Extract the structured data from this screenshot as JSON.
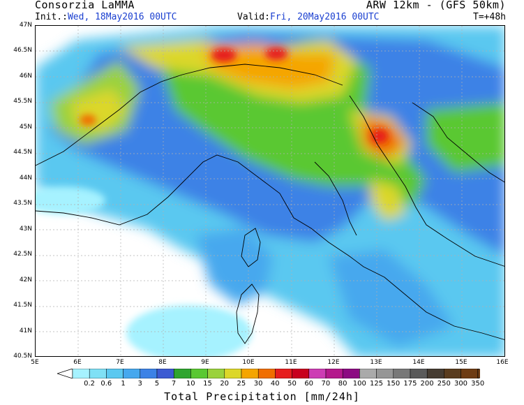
{
  "header": {
    "org": "Consorzia LaMMA",
    "model": "ARW 12km - (GFS 50km)",
    "init_label": "Init.:",
    "init_value": "Wed, 18May2016 00UTC",
    "valid_label": "Valid:",
    "valid_value": "Fri, 20May2016 00UTC",
    "step": "T=+48h"
  },
  "map": {
    "lat_labels": [
      "47N",
      "46.5N",
      "46N",
      "45.5N",
      "45N",
      "44.5N",
      "44N",
      "43.5N",
      "43N",
      "42.5N",
      "42N",
      "41.5N",
      "41N",
      "40.5N"
    ],
    "lon_labels": [
      "5E",
      "6E",
      "7E",
      "8E",
      "9E",
      "10E",
      "11E",
      "12E",
      "13E",
      "14E",
      "15E",
      "16E"
    ],
    "lat_range": [
      40.5,
      47
    ],
    "lon_range": [
      5,
      16
    ]
  },
  "legend": {
    "title": "Total Precipitation [mm/24h]",
    "values": [
      "0.2",
      "0.6",
      "1",
      "3",
      "5",
      "7",
      "10",
      "15",
      "20",
      "25",
      "30",
      "40",
      "50",
      "60",
      "70",
      "80",
      "100",
      "125",
      "150",
      "175",
      "200",
      "250",
      "300",
      "350"
    ],
    "colors": [
      "#a6f2ff",
      "#7fe0f5",
      "#5ac8f0",
      "#46a8ee",
      "#3c82e6",
      "#3c5ad2",
      "#2fa52f",
      "#5ac832",
      "#9ad23c",
      "#dcd729",
      "#f5a500",
      "#f06e00",
      "#e61e1e",
      "#c8001e",
      "#cd3cb4",
      "#b4198c",
      "#8c0a82",
      "#aaaaaa",
      "#969696",
      "#787878",
      "#5a5a5a",
      "#463c32",
      "#5a3c1e",
      "#6e3c14"
    ]
  }
}
